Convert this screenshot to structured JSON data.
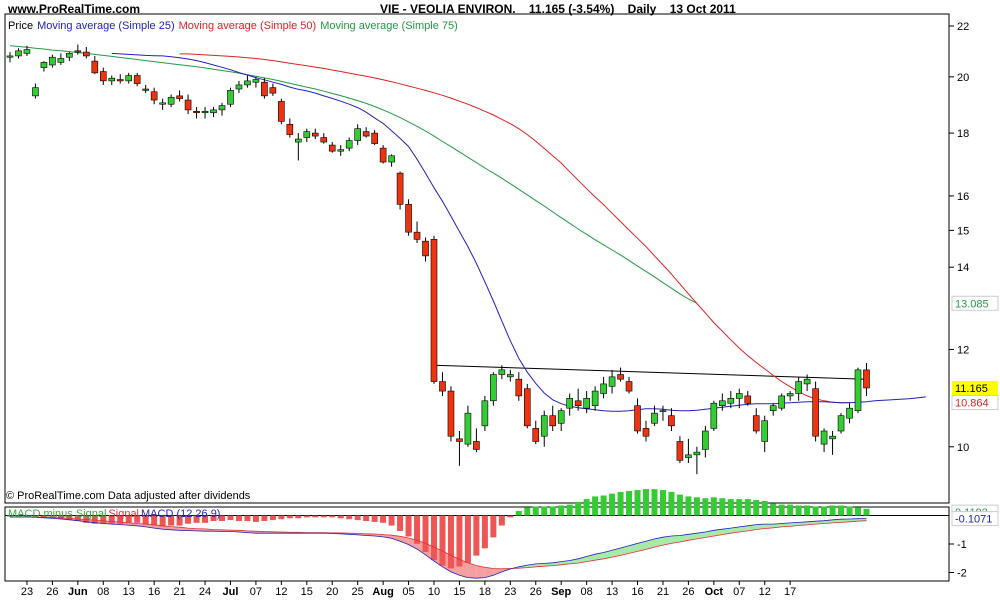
{
  "header": {
    "site": "www.ProRealTime.com",
    "symbol": "VIE - VEOLIA ENVIRON.",
    "quote": "11.165 (-3.54%)",
    "period": "Daily",
    "date": "13 Oct 2011"
  },
  "legend": {
    "price": "Price",
    "ma25": "Moving average (Simple 25)",
    "ma50": "Moving average (Simple 50)",
    "ma75": "Moving average (Simple 75)"
  },
  "footer_note": "© ProRealTime.com  Data adjusted after dividends",
  "macd_legend": {
    "hist": "MACD minus Signal",
    "signal": "Signal",
    "macd": "MACD (12 26 9)"
  },
  "colors": {
    "up": "#33cc33",
    "down": "#ee3311",
    "ma25": "#2222bb",
    "ma50": "#dd2222",
    "ma75": "#229944",
    "hist_pos": "#33cc33",
    "hist_neg": "#ee5555",
    "macd_fill_neg": "#f4a0a0",
    "macd_fill_pos": "#a8e8a8"
  },
  "chart_data": [
    {
      "type": "candlestick",
      "title": "VIE - VEOLIA ENVIRON.",
      "y_scale": "log",
      "y_ticks": [
        10,
        12,
        14,
        15,
        16,
        18,
        20,
        22
      ],
      "ylim": [
        9.0,
        22.5
      ],
      "x_ticks": [
        "23",
        "26",
        "Jun",
        "08",
        "13",
        "16",
        "21",
        "24",
        "Jul",
        "07",
        "12",
        "15",
        "20",
        "25",
        "Aug",
        "05",
        "10",
        "15",
        "18",
        "23",
        "26",
        "Sep",
        "08",
        "13",
        "16",
        "21",
        "26",
        "Oct",
        "07",
        "12",
        "17"
      ],
      "x_tick_bars": [
        2,
        5,
        8,
        11,
        14,
        17,
        20,
        23,
        26,
        29,
        32,
        35,
        38,
        41,
        44,
        47,
        50,
        53,
        56,
        59,
        62,
        65,
        68,
        71,
        74,
        77,
        80,
        83,
        86,
        89,
        92
      ],
      "price_labels": [
        {
          "text": "13.085",
          "value": 13.085,
          "color": "#229944"
        },
        {
          "text": "11.165",
          "value": 11.165,
          "color": "#000000",
          "bg": "#ffff00"
        },
        {
          "text": "10.864",
          "value": 10.864,
          "color": "#dd2222"
        }
      ],
      "candles": [
        [
          20.75,
          20.95,
          20.55,
          20.8
        ],
        [
          20.8,
          21.1,
          20.7,
          21.0
        ],
        [
          20.9,
          21.2,
          20.8,
          21.05
        ],
        [
          19.3,
          19.75,
          19.2,
          19.6
        ],
        [
          20.35,
          20.6,
          20.2,
          20.55
        ],
        [
          20.45,
          20.85,
          20.35,
          20.75
        ],
        [
          20.55,
          20.9,
          20.45,
          20.7
        ],
        [
          20.75,
          20.95,
          20.6,
          20.9
        ],
        [
          21.0,
          21.25,
          20.85,
          20.95
        ],
        [
          20.95,
          21.15,
          20.7,
          20.8
        ],
        [
          20.6,
          20.8,
          20.1,
          20.15
        ],
        [
          20.2,
          20.35,
          19.7,
          19.85
        ],
        [
          19.85,
          20.05,
          19.7,
          19.95
        ],
        [
          19.9,
          20.1,
          19.75,
          19.85
        ],
        [
          19.85,
          20.15,
          19.75,
          20.05
        ],
        [
          20.05,
          20.15,
          19.65,
          19.75
        ],
        [
          19.55,
          19.7,
          19.4,
          19.5
        ],
        [
          19.45,
          19.6,
          19.0,
          19.15
        ],
        [
          19.0,
          19.2,
          18.8,
          19.05
        ],
        [
          19.0,
          19.35,
          18.9,
          19.25
        ],
        [
          19.3,
          19.5,
          19.1,
          19.2
        ],
        [
          19.15,
          19.35,
          18.65,
          18.8
        ],
        [
          18.75,
          18.9,
          18.5,
          18.7
        ],
        [
          18.7,
          18.9,
          18.5,
          18.75
        ],
        [
          18.7,
          18.9,
          18.55,
          18.8
        ],
        [
          18.8,
          19.05,
          18.6,
          18.95
        ],
        [
          19.0,
          19.6,
          18.9,
          19.5
        ],
        [
          19.55,
          19.85,
          19.4,
          19.7
        ],
        [
          19.7,
          20.05,
          19.6,
          19.85
        ],
        [
          19.8,
          20.0,
          19.6,
          19.9
        ],
        [
          19.8,
          19.95,
          19.2,
          19.3
        ],
        [
          19.6,
          19.75,
          19.3,
          19.4
        ],
        [
          19.1,
          19.2,
          18.3,
          18.4
        ],
        [
          18.3,
          18.5,
          17.85,
          17.95
        ],
        [
          17.7,
          18.0,
          17.1,
          17.8
        ],
        [
          17.85,
          18.15,
          17.7,
          18.05
        ],
        [
          18.0,
          18.15,
          17.8,
          17.9
        ],
        [
          17.85,
          18.0,
          17.65,
          17.7
        ],
        [
          17.6,
          17.7,
          17.35,
          17.4
        ],
        [
          17.4,
          17.6,
          17.25,
          17.45
        ],
        [
          17.5,
          17.85,
          17.4,
          17.75
        ],
        [
          17.75,
          18.3,
          17.6,
          18.15
        ],
        [
          18.05,
          18.2,
          17.85,
          17.9
        ],
        [
          18.0,
          18.1,
          17.6,
          17.65
        ],
        [
          17.5,
          17.6,
          17.0,
          17.05
        ],
        [
          17.05,
          17.3,
          16.9,
          17.25
        ],
        [
          16.7,
          16.75,
          15.6,
          15.75
        ],
        [
          15.75,
          15.9,
          14.85,
          14.95
        ],
        [
          14.95,
          15.25,
          14.65,
          14.75
        ],
        [
          14.7,
          14.8,
          14.15,
          14.3
        ],
        [
          14.75,
          14.85,
          11.25,
          11.3
        ],
        [
          11.3,
          11.5,
          11.0,
          11.1
        ],
        [
          11.1,
          11.2,
          10.1,
          10.2
        ],
        [
          10.15,
          10.3,
          9.65,
          10.1
        ],
        [
          10.05,
          10.8,
          10.0,
          10.65
        ],
        [
          10.1,
          10.35,
          9.9,
          9.95
        ],
        [
          10.4,
          11.0,
          10.3,
          10.9
        ],
        [
          10.9,
          11.5,
          10.8,
          11.45
        ],
        [
          11.45,
          11.65,
          11.35,
          11.55
        ],
        [
          11.4,
          11.55,
          11.3,
          11.45
        ],
        [
          11.35,
          11.5,
          10.9,
          11.0
        ],
        [
          11.15,
          11.25,
          10.35,
          10.4
        ],
        [
          10.35,
          10.5,
          10.05,
          10.1
        ],
        [
          10.2,
          10.7,
          10.0,
          10.6
        ],
        [
          10.6,
          10.8,
          10.3,
          10.4
        ],
        [
          10.45,
          10.75,
          10.3,
          10.7
        ],
        [
          10.75,
          11.05,
          10.6,
          10.95
        ],
        [
          10.9,
          11.15,
          10.7,
          10.8
        ],
        [
          10.75,
          11.1,
          10.65,
          10.95
        ],
        [
          10.8,
          11.2,
          10.7,
          11.1
        ],
        [
          11.05,
          11.4,
          10.95,
          11.25
        ],
        [
          11.2,
          11.55,
          11.05,
          11.4
        ],
        [
          11.45,
          11.6,
          11.3,
          11.35
        ],
        [
          11.3,
          11.4,
          11.05,
          11.1
        ],
        [
          10.8,
          10.95,
          10.25,
          10.3
        ],
        [
          10.35,
          10.5,
          10.1,
          10.2
        ],
        [
          10.45,
          10.8,
          10.4,
          10.65
        ],
        [
          10.7,
          10.8,
          10.5,
          10.7
        ],
        [
          10.6,
          10.75,
          10.3,
          10.4
        ],
        [
          10.1,
          10.2,
          9.7,
          9.75
        ],
        [
          9.8,
          10.15,
          9.7,
          9.85
        ],
        [
          9.85,
          10.0,
          9.5,
          9.9
        ],
        [
          9.95,
          10.4,
          9.8,
          10.3
        ],
        [
          10.35,
          10.9,
          10.3,
          10.85
        ],
        [
          10.8,
          11.05,
          10.7,
          10.9
        ],
        [
          10.85,
          11.1,
          10.75,
          10.95
        ],
        [
          10.95,
          11.15,
          10.75,
          11.05
        ],
        [
          11.0,
          11.1,
          10.8,
          10.85
        ],
        [
          10.6,
          10.75,
          10.25,
          10.3
        ],
        [
          10.1,
          10.6,
          9.9,
          10.5
        ],
        [
          10.7,
          10.85,
          10.6,
          10.8
        ],
        [
          10.75,
          11.05,
          10.7,
          11.0
        ],
        [
          11.0,
          11.1,
          10.9,
          11.05
        ],
        [
          11.05,
          11.4,
          10.9,
          11.3
        ],
        [
          11.25,
          11.45,
          11.1,
          11.35
        ],
        [
          11.15,
          11.3,
          10.1,
          10.2
        ],
        [
          10.05,
          10.35,
          9.9,
          10.3
        ],
        [
          10.15,
          10.3,
          9.85,
          10.2
        ],
        [
          10.3,
          10.65,
          10.25,
          10.6
        ],
        [
          10.55,
          10.85,
          10.45,
          10.75
        ],
        [
          10.7,
          11.6,
          10.65,
          11.55
        ],
        [
          11.55,
          11.7,
          11.0,
          11.165
        ]
      ],
      "ma25": [
        20.9,
        20.88,
        20.86,
        20.84,
        20.82,
        20.81,
        20.8,
        20.77,
        20.73,
        20.68,
        20.62,
        20.54,
        20.45,
        20.36,
        20.27,
        20.16,
        20.07,
        19.97,
        19.89,
        19.8,
        19.72,
        19.62,
        19.54,
        19.48,
        19.4,
        19.3,
        19.21,
        19.11,
        19.0,
        18.88,
        18.72,
        18.52,
        18.33,
        18.08,
        17.82,
        17.55,
        17.14,
        16.7,
        16.25,
        15.84,
        15.4,
        14.97,
        14.55,
        14.1,
        13.62,
        13.14,
        12.66,
        12.2,
        11.8,
        11.5,
        11.26,
        11.06,
        10.92,
        10.84,
        10.79,
        10.76,
        10.74,
        10.72,
        10.7,
        10.69,
        10.69,
        10.7,
        10.72,
        10.74,
        10.74,
        10.73,
        10.71,
        10.7,
        10.7,
        10.71,
        10.73,
        10.75,
        10.77,
        10.79,
        10.81,
        10.83,
        10.84,
        10.84,
        10.84,
        10.85,
        10.86,
        10.87,
        10.88,
        10.88,
        10.88,
        10.87,
        10.86,
        10.86,
        10.87,
        10.88,
        10.9,
        10.91,
        10.92,
        10.93,
        10.94,
        10.96,
        10.98
      ],
      "ma25_start": 12,
      "ma50": [
        20.88,
        20.88,
        20.86,
        20.84,
        20.82,
        20.8,
        20.78,
        20.76,
        20.73,
        20.7,
        20.66,
        20.62,
        20.57,
        20.52,
        20.47,
        20.42,
        20.37,
        20.32,
        20.26,
        20.2,
        20.14,
        20.08,
        20.02,
        19.96,
        19.89,
        19.82,
        19.74,
        19.66,
        19.58,
        19.5,
        19.41,
        19.32,
        19.22,
        19.11,
        19.0,
        18.88,
        18.75,
        18.62,
        18.47,
        18.32,
        18.15,
        17.95,
        17.73,
        17.49,
        17.25,
        17.02,
        16.74,
        16.48,
        16.22,
        15.97,
        15.74,
        15.49,
        15.25,
        15.01,
        14.78,
        14.55,
        14.3,
        14.06,
        13.82,
        13.57,
        13.32,
        13.08,
        12.85,
        12.62,
        12.42,
        12.22,
        12.03,
        11.86,
        11.71,
        11.57,
        11.43,
        11.3,
        11.19,
        11.09,
        11.0,
        10.94,
        10.9,
        10.87,
        10.86,
        10.864
      ],
      "ma50_start": 20,
      "ma75": [
        21.2,
        21.17,
        21.14,
        21.1,
        21.07,
        21.03,
        21.0,
        20.97,
        20.93,
        20.9,
        20.86,
        20.82,
        20.78,
        20.74,
        20.7,
        20.66,
        20.62,
        20.58,
        20.54,
        20.5,
        20.46,
        20.42,
        20.38,
        20.34,
        20.29,
        20.24,
        20.19,
        20.14,
        20.08,
        20.02,
        19.96,
        19.9,
        19.83,
        19.76,
        19.69,
        19.62,
        19.55,
        19.47,
        19.39,
        19.31,
        19.22,
        19.13,
        19.03,
        18.92,
        18.8,
        18.67,
        18.53,
        18.38,
        18.23,
        18.07,
        17.9,
        17.72,
        17.55,
        17.38,
        17.2,
        17.03,
        16.86,
        16.7,
        16.54,
        16.37,
        16.2,
        16.03,
        15.86,
        15.7,
        15.53,
        15.36,
        15.2,
        15.04,
        14.89,
        14.74,
        14.6,
        14.46,
        14.32,
        14.18,
        14.03,
        13.89,
        13.75,
        13.6,
        13.46,
        13.32,
        13.19,
        13.085
      ],
      "ma75_start": 0,
      "trendline": [
        [
          50,
          11.65
        ],
        [
          101,
          11.35
        ]
      ]
    },
    {
      "type": "macd",
      "title": "MACD (12 26 9)",
      "y_ticks": [
        -1,
        -2
      ],
      "ylim": [
        -2.3,
        0.3
      ],
      "price_labels": [
        {
          "text": "0.1192",
          "value": 0.1192,
          "color": "#229944"
        },
        {
          "text": "-0.1071",
          "value": -0.1071,
          "color": "#2222bb"
        }
      ],
      "macd": [
        -0.05,
        -0.05,
        -0.05,
        -0.06,
        -0.08,
        -0.1,
        -0.12,
        -0.15,
        -0.18,
        -0.22,
        -0.25,
        -0.28,
        -0.3,
        -0.32,
        -0.34,
        -0.36,
        -0.4,
        -0.44,
        -0.48,
        -0.5,
        -0.52,
        -0.53,
        -0.54,
        -0.55,
        -0.55,
        -0.56,
        -0.56,
        -0.58,
        -0.6,
        -0.62,
        -0.62,
        -0.62,
        -0.62,
        -0.62,
        -0.62,
        -0.62,
        -0.62,
        -0.62,
        -0.63,
        -0.64,
        -0.66,
        -0.68,
        -0.7,
        -0.72,
        -0.75,
        -0.8,
        -0.9,
        -1.02,
        -1.18,
        -1.38,
        -1.6,
        -1.8,
        -1.98,
        -2.1,
        -2.18,
        -2.2,
        -2.18,
        -2.1,
        -1.98,
        -1.88,
        -1.8,
        -1.74,
        -1.7,
        -1.68,
        -1.66,
        -1.62,
        -1.58,
        -1.52,
        -1.44,
        -1.36,
        -1.3,
        -1.22,
        -1.14,
        -1.06,
        -0.98,
        -0.9,
        -0.82,
        -0.76,
        -0.72,
        -0.7,
        -0.66,
        -0.62,
        -0.58,
        -0.52,
        -0.48,
        -0.44,
        -0.4,
        -0.36,
        -0.32,
        -0.3,
        -0.3,
        -0.28,
        -0.26,
        -0.24,
        -0.22,
        -0.2,
        -0.18,
        -0.15,
        -0.13,
        -0.12,
        -0.11,
        -0.1071
      ],
      "signal": [
        -0.05,
        -0.05,
        -0.05,
        -0.05,
        -0.06,
        -0.07,
        -0.08,
        -0.1,
        -0.12,
        -0.14,
        -0.16,
        -0.19,
        -0.21,
        -0.23,
        -0.26,
        -0.28,
        -0.3,
        -0.33,
        -0.36,
        -0.39,
        -0.41,
        -0.44,
        -0.46,
        -0.47,
        -0.49,
        -0.5,
        -0.51,
        -0.52,
        -0.54,
        -0.55,
        -0.56,
        -0.57,
        -0.58,
        -0.59,
        -0.59,
        -0.6,
        -0.6,
        -0.6,
        -0.61,
        -0.61,
        -0.62,
        -0.63,
        -0.64,
        -0.65,
        -0.67,
        -0.69,
        -0.73,
        -0.79,
        -0.87,
        -0.98,
        -1.11,
        -1.25,
        -1.4,
        -1.54,
        -1.66,
        -1.76,
        -1.82,
        -1.86,
        -1.87,
        -1.86,
        -1.85,
        -1.83,
        -1.8,
        -1.78,
        -1.76,
        -1.73,
        -1.7,
        -1.67,
        -1.62,
        -1.57,
        -1.52,
        -1.46,
        -1.4,
        -1.33,
        -1.26,
        -1.19,
        -1.11,
        -1.04,
        -0.98,
        -0.93,
        -0.87,
        -0.82,
        -0.77,
        -0.72,
        -0.67,
        -0.62,
        -0.58,
        -0.54,
        -0.49,
        -0.46,
        -0.43,
        -0.4,
        -0.38,
        -0.35,
        -0.33,
        -0.3,
        -0.28,
        -0.26,
        -0.24,
        -0.22,
        -0.2,
        -0.18
      ]
    }
  ]
}
